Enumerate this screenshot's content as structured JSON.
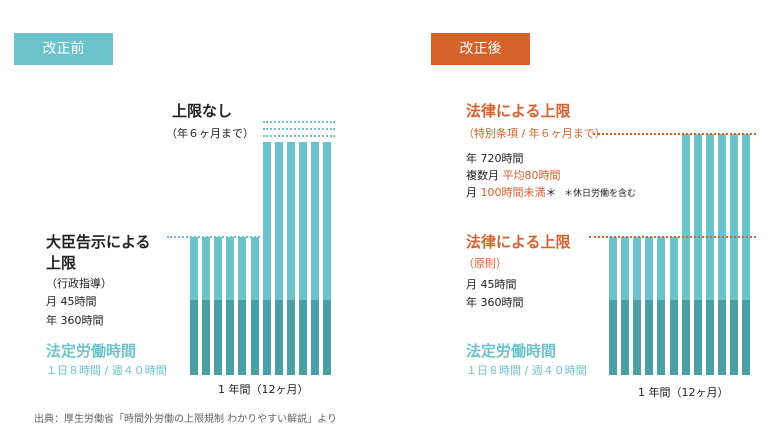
{
  "colors": {
    "teal": "#6cc3cc",
    "teal_dark": "#4a9ea5",
    "orange": "#d5612b",
    "text": "#222222",
    "gray": "#666666"
  },
  "before": {
    "tag": "改正前",
    "no_limit_title": "上限なし",
    "no_limit_note": "（年６ヶ月まで）",
    "minister_title_1": "大臣告示による",
    "minister_title_2": "上限",
    "minister_sub": "（行政指導）",
    "minister_month": "月 45時間",
    "minister_year": "年 360時間",
    "legal_title": "法定労働時間",
    "legal_detail": "１日８時間 / 週４０時間",
    "axis_label": "1 年間（12ヶ月）"
  },
  "after": {
    "tag": "改正後",
    "special_title": "法律による上限",
    "special_note": "（特別条項 / 年６ヶ月まで）",
    "special_year": "年 720時間",
    "special_multi_prefix": "複数月",
    "special_multi_value": "平均80時間",
    "special_month_prefix": "月",
    "special_month_value": "100時間未満",
    "special_month_asterisk": "＊",
    "special_month_footnote": "＊休日労働を含む",
    "principle_title": "法律による上限",
    "principle_note": "（原則）",
    "principle_month": "月 45時間",
    "principle_year": "年 360時間",
    "legal_title": "法定労働時間",
    "legal_detail": "１日８時間 / 週４０時間",
    "axis_label": "1 年間（12ヶ月）"
  },
  "source": "出典：厚生労働省「時間外労働の上限規制 わかりやすい解説」より"
}
